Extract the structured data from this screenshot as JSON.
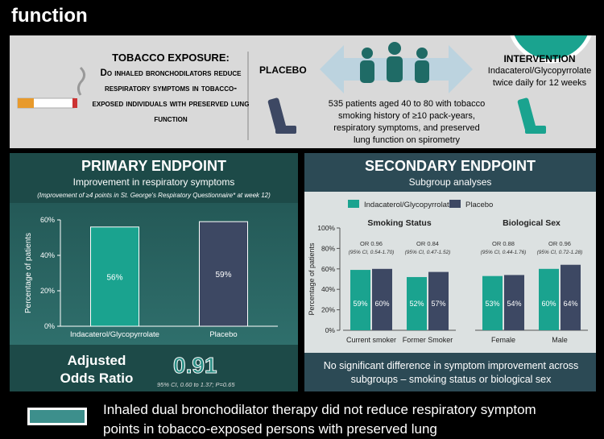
{
  "header": {
    "title": "function"
  },
  "design": {
    "exposure_title": "TOBACCO EXPOSURE:",
    "question": "Do inhaled bronchodilators reduce respiratory symptoms in tobacco-exposed individuals with preserved lung function",
    "placebo": "PLACEBO",
    "intervention_title": "INTERVENTION",
    "intervention_text": "Indacaterol/Glycopyrrolate twice daily for 12 weeks",
    "population": "535 patients aged 40 to 80 with tobacco smoking history of ≥10 pack-years, respiratory symptoms, and preserved lung function on spirometry"
  },
  "primary": {
    "title": "PRIMARY ENDPOINT",
    "subtitle": "Improvement in respiratory symptoms",
    "note": "(Improvement of ≥4 points in St. George's Respiratory Questionnaire* at week 12)",
    "chart": {
      "type": "bar",
      "y_label": "Percentage of patients",
      "categories": [
        "Indacaterol/Glycopyrrolate",
        "Placebo"
      ],
      "values": [
        56,
        59
      ],
      "value_labels": [
        "56%",
        "59%"
      ],
      "colors": [
        "#1aa38f",
        "#3d4863"
      ],
      "ylim": [
        0,
        60
      ],
      "yticks": [
        {
          "value": 0,
          "label": "0%"
        },
        {
          "value": 20,
          "label": "20%"
        },
        {
          "value": 40,
          "label": "40%"
        },
        {
          "value": 60,
          "label": "60%"
        }
      ]
    },
    "or_label": "Adjusted Odds Ratio",
    "or_value": "0.91",
    "or_ci": "95% CI, 0.60 to 1.37; P=0.65"
  },
  "secondary": {
    "title": "SECONDARY ENDPOINT",
    "subtitle": "Subgroup analyses",
    "chart": {
      "type": "grouped_bar",
      "y_label": "Percentage of patients",
      "ylim": [
        0,
        100
      ],
      "yticks": [
        {
          "value": 0,
          "label": "0%"
        },
        {
          "value": 20,
          "label": "20%"
        },
        {
          "value": 40,
          "label": "40%"
        },
        {
          "value": 60,
          "label": "60%"
        },
        {
          "value": 80,
          "label": "80%"
        },
        {
          "value": 100,
          "label": "100%"
        }
      ],
      "panels": [
        {
          "title": "Smoking Status",
          "categories": [
            "Current smoker",
            "Former Smoker"
          ],
          "annotations": [
            {
              "or": "OR 0.96",
              "ci": "(95% CI, 0.54-1.70)"
            },
            {
              "or": "OR 0.84",
              "ci": "(95% CI, 0.47-1.52)"
            }
          ]
        },
        {
          "title": "Biological Sex",
          "categories": [
            "Female",
            "Male"
          ],
          "annotations": [
            {
              "or": "OR 0.88",
              "ci": "(95% CI, 0.44-1.76)"
            },
            {
              "or": "OR 0.96",
              "ci": "(95% CI, 0.72-1.28)"
            }
          ]
        }
      ],
      "series": [
        {
          "name": "Indacaterol/Glycopyrrolate",
          "color": "#1aa38f",
          "values": [
            [
              59,
              52
            ],
            [
              53,
              60
            ]
          ],
          "value_labels": [
            [
              "59%",
              "52%"
            ],
            [
              "53%",
              "60%"
            ]
          ]
        },
        {
          "name": "Placebo",
          "color": "#3d4863",
          "values": [
            [
              60,
              57
            ],
            [
              54,
              64
            ]
          ],
          "value_labels": [
            [
              "60%",
              "57%"
            ],
            [
              "54%",
              "64%"
            ]
          ]
        }
      ]
    },
    "conclusion": "No significant difference in symptom improvement across subgroups – smoking status or biological sex"
  },
  "footer": {
    "text": "Inhaled dual bronchodilator therapy did not reduce respiratory symptom points in tobacco-exposed persons with preserved lung"
  }
}
